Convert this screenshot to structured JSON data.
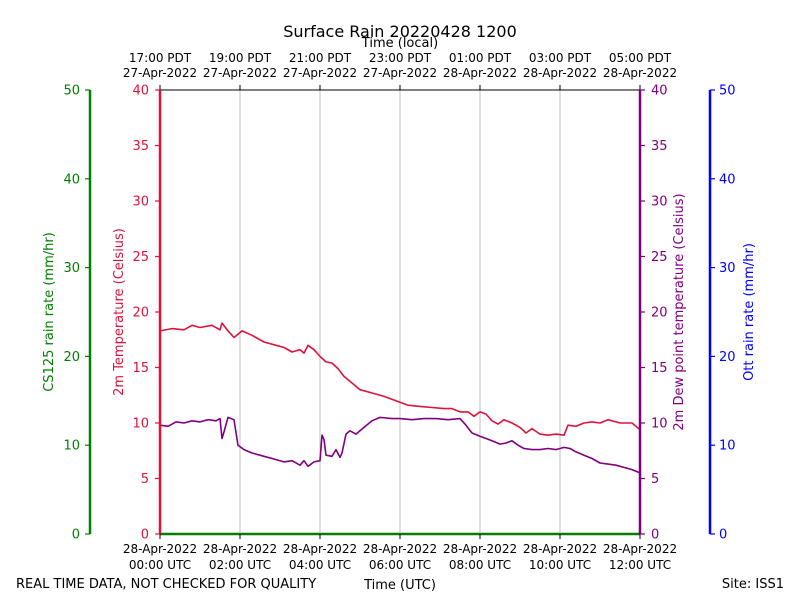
{
  "chart_data": {
    "type": "line",
    "title": "Surface Rain 20220428 1200",
    "top_axis_title": "Time (local)",
    "xlabel": "Time (UTC)",
    "footer_left": "REAL TIME DATA, NOT CHECKED FOR QUALITY",
    "footer_right": "Site: ISS1",
    "xlim_hours": [
      0,
      12
    ],
    "x_ticks": [
      {
        "hour": 0,
        "utc_date": "28-Apr-2022",
        "utc_time": "00:00 UTC",
        "local_time": "17:00 PDT",
        "local_date": "27-Apr-2022"
      },
      {
        "hour": 2,
        "utc_date": "28-Apr-2022",
        "utc_time": "02:00 UTC",
        "local_time": "19:00 PDT",
        "local_date": "27-Apr-2022"
      },
      {
        "hour": 4,
        "utc_date": "28-Apr-2022",
        "utc_time": "04:00 UTC",
        "local_time": "21:00 PDT",
        "local_date": "27-Apr-2022"
      },
      {
        "hour": 6,
        "utc_date": "28-Apr-2022",
        "utc_time": "06:00 UTC",
        "local_time": "23:00 PDT",
        "local_date": "27-Apr-2022"
      },
      {
        "hour": 8,
        "utc_date": "28-Apr-2022",
        "utc_time": "08:00 UTC",
        "local_time": "01:00 PDT",
        "local_date": "28-Apr-2022"
      },
      {
        "hour": 10,
        "utc_date": "28-Apr-2022",
        "utc_time": "10:00 UTC",
        "local_time": "03:00 PDT",
        "local_date": "28-Apr-2022"
      },
      {
        "hour": 12,
        "utc_date": "28-Apr-2022",
        "utc_time": "12:00 UTC",
        "local_time": "05:00 PDT",
        "local_date": "28-Apr-2022"
      }
    ],
    "axes": {
      "cs125": {
        "label": "CS125 rain rate (mm/hr)",
        "color": "#008000",
        "ylim": [
          0,
          50
        ],
        "ticks": [
          "0",
          "10",
          "20",
          "30",
          "40",
          "50"
        ]
      },
      "temp": {
        "label": "2m Temperature (Celsius)",
        "color": "#dc143c",
        "ylim": [
          0,
          40
        ],
        "ticks": [
          "0",
          "5",
          "10",
          "15",
          "20",
          "25",
          "30",
          "35",
          "40"
        ]
      },
      "dew": {
        "label": "2m Dew point temperature (Celsius)",
        "color": "#800080",
        "ylim": [
          0,
          40
        ],
        "ticks": [
          "0",
          "5",
          "10",
          "15",
          "20",
          "25",
          "30",
          "35",
          "40"
        ]
      },
      "ott": {
        "label": "Ott rain rate (mm/hr)",
        "color": "#0000ff",
        "ylim": [
          0,
          50
        ],
        "ticks": [
          "0",
          "10",
          "20",
          "30",
          "40",
          "50"
        ]
      }
    },
    "series": [
      {
        "name": "2m Temperature",
        "color": "#dc143c",
        "points": [
          [
            0,
            18.3
          ],
          [
            0.3,
            18.5
          ],
          [
            0.6,
            18.4
          ],
          [
            0.8,
            18.8
          ],
          [
            1.0,
            18.6
          ],
          [
            1.3,
            18.8
          ],
          [
            1.5,
            18.4
          ],
          [
            1.55,
            19
          ],
          [
            1.7,
            18.3
          ],
          [
            1.85,
            17.7
          ],
          [
            1.95,
            18.0
          ],
          [
            2.05,
            18.3
          ],
          [
            2.3,
            17.9
          ],
          [
            2.6,
            17.3
          ],
          [
            2.9,
            17.0
          ],
          [
            3.1,
            16.8
          ],
          [
            3.3,
            16.4
          ],
          [
            3.5,
            16.6
          ],
          [
            3.6,
            16.3
          ],
          [
            3.7,
            17.0
          ],
          [
            3.85,
            16.6
          ],
          [
            4.0,
            16.0
          ],
          [
            4.15,
            15.5
          ],
          [
            4.3,
            15.4
          ],
          [
            4.45,
            14.9
          ],
          [
            4.6,
            14.2
          ],
          [
            4.8,
            13.6
          ],
          [
            5.0,
            13.0
          ],
          [
            5.3,
            12.7
          ],
          [
            5.6,
            12.4
          ],
          [
            5.9,
            12.0
          ],
          [
            6.2,
            11.6
          ],
          [
            6.5,
            11.5
          ],
          [
            6.8,
            11.4
          ],
          [
            7.1,
            11.3
          ],
          [
            7.3,
            11.3
          ],
          [
            7.5,
            11.0
          ],
          [
            7.7,
            11.0
          ],
          [
            7.85,
            10.6
          ],
          [
            8.0,
            11.0
          ],
          [
            8.15,
            10.8
          ],
          [
            8.3,
            10.2
          ],
          [
            8.45,
            9.9
          ],
          [
            8.6,
            10.3
          ],
          [
            8.8,
            10.0
          ],
          [
            9.0,
            9.6
          ],
          [
            9.15,
            9.1
          ],
          [
            9.3,
            9.5
          ],
          [
            9.5,
            9.0
          ],
          [
            9.7,
            8.9
          ],
          [
            9.9,
            9.0
          ],
          [
            10.1,
            8.9
          ],
          [
            10.2,
            9.8
          ],
          [
            10.4,
            9.7
          ],
          [
            10.6,
            10.0
          ],
          [
            10.8,
            10.1
          ],
          [
            11.0,
            10.0
          ],
          [
            11.2,
            10.3
          ],
          [
            11.5,
            10.0
          ],
          [
            11.8,
            10.0
          ],
          [
            12.0,
            9.4
          ]
        ]
      },
      {
        "name": "2m Dew point temperature",
        "color": "#800080",
        "points": [
          [
            0,
            9.8
          ],
          [
            0.2,
            9.7
          ],
          [
            0.4,
            10.1
          ],
          [
            0.6,
            10.0
          ],
          [
            0.8,
            10.2
          ],
          [
            1.0,
            10.1
          ],
          [
            1.2,
            10.3
          ],
          [
            1.4,
            10.2
          ],
          [
            1.5,
            10.4
          ],
          [
            1.55,
            8.6
          ],
          [
            1.6,
            9.2
          ],
          [
            1.7,
            10.5
          ],
          [
            1.85,
            10.3
          ],
          [
            1.95,
            8.0
          ],
          [
            2.1,
            7.6
          ],
          [
            2.3,
            7.3
          ],
          [
            2.6,
            7.0
          ],
          [
            2.9,
            6.7
          ],
          [
            3.1,
            6.5
          ],
          [
            3.3,
            6.6
          ],
          [
            3.5,
            6.2
          ],
          [
            3.6,
            6.6
          ],
          [
            3.7,
            6.1
          ],
          [
            3.85,
            6.5
          ],
          [
            4.0,
            6.6
          ],
          [
            4.05,
            8.9
          ],
          [
            4.1,
            8.5
          ],
          [
            4.15,
            7.1
          ],
          [
            4.3,
            7.0
          ],
          [
            4.4,
            7.6
          ],
          [
            4.5,
            6.9
          ],
          [
            4.55,
            7.3
          ],
          [
            4.65,
            9.0
          ],
          [
            4.75,
            9.3
          ],
          [
            4.9,
            9.0
          ],
          [
            5.1,
            9.6
          ],
          [
            5.3,
            10.2
          ],
          [
            5.5,
            10.5
          ],
          [
            5.8,
            10.4
          ],
          [
            6.0,
            10.4
          ],
          [
            6.3,
            10.3
          ],
          [
            6.6,
            10.4
          ],
          [
            6.9,
            10.4
          ],
          [
            7.2,
            10.3
          ],
          [
            7.5,
            10.4
          ],
          [
            7.65,
            9.8
          ],
          [
            7.8,
            9.1
          ],
          [
            8.0,
            8.8
          ],
          [
            8.3,
            8.4
          ],
          [
            8.5,
            8.1
          ],
          [
            8.65,
            8.2
          ],
          [
            8.8,
            8.4
          ],
          [
            8.95,
            8.0
          ],
          [
            9.1,
            7.7
          ],
          [
            9.3,
            7.6
          ],
          [
            9.5,
            7.6
          ],
          [
            9.7,
            7.7
          ],
          [
            9.9,
            7.6
          ],
          [
            10.1,
            7.8
          ],
          [
            10.25,
            7.7
          ],
          [
            10.4,
            7.4
          ],
          [
            10.6,
            7.1
          ],
          [
            10.8,
            6.8
          ],
          [
            11.0,
            6.4
          ],
          [
            11.2,
            6.3
          ],
          [
            11.4,
            6.2
          ],
          [
            11.6,
            6.0
          ],
          [
            11.8,
            5.8
          ],
          [
            12.0,
            5.5
          ]
        ]
      }
    ]
  }
}
